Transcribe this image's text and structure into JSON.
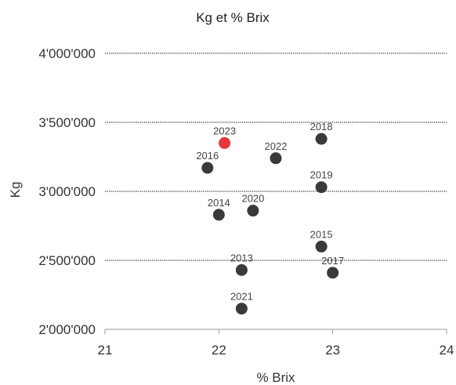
{
  "chart_data": {
    "type": "scatter",
    "title": "Kg et % Brix",
    "xlabel": "% Brix",
    "ylabel": "Kg",
    "xlim": [
      21,
      24
    ],
    "ylim": [
      2000000,
      4000000
    ],
    "x_ticks": [
      "21",
      "22",
      "23",
      "24"
    ],
    "y_ticks": [
      "2'000'000",
      "2'500'000",
      "3'000'000",
      "3'500'000",
      "4'000'000"
    ],
    "grid": "horizontal dotted",
    "highlight_color": "#e8383d",
    "point_color": "#3a3a3a",
    "points": [
      {
        "label": "2013",
        "x": 22.2,
        "y": 2430000,
        "highlight": false
      },
      {
        "label": "2014",
        "x": 22.0,
        "y": 2830000,
        "highlight": false
      },
      {
        "label": "2015",
        "x": 22.9,
        "y": 2600000,
        "highlight": false
      },
      {
        "label": "2016",
        "x": 21.9,
        "y": 3170000,
        "highlight": false
      },
      {
        "label": "2017",
        "x": 23.0,
        "y": 2410000,
        "highlight": false
      },
      {
        "label": "2018",
        "x": 22.9,
        "y": 3380000,
        "highlight": false
      },
      {
        "label": "2019",
        "x": 22.9,
        "y": 3030000,
        "highlight": false
      },
      {
        "label": "2020",
        "x": 22.3,
        "y": 2860000,
        "highlight": false
      },
      {
        "label": "2021",
        "x": 22.2,
        "y": 2150000,
        "highlight": false
      },
      {
        "label": "2022",
        "x": 22.5,
        "y": 3240000,
        "highlight": false
      },
      {
        "label": "2023",
        "x": 22.05,
        "y": 3350000,
        "highlight": true
      }
    ]
  }
}
